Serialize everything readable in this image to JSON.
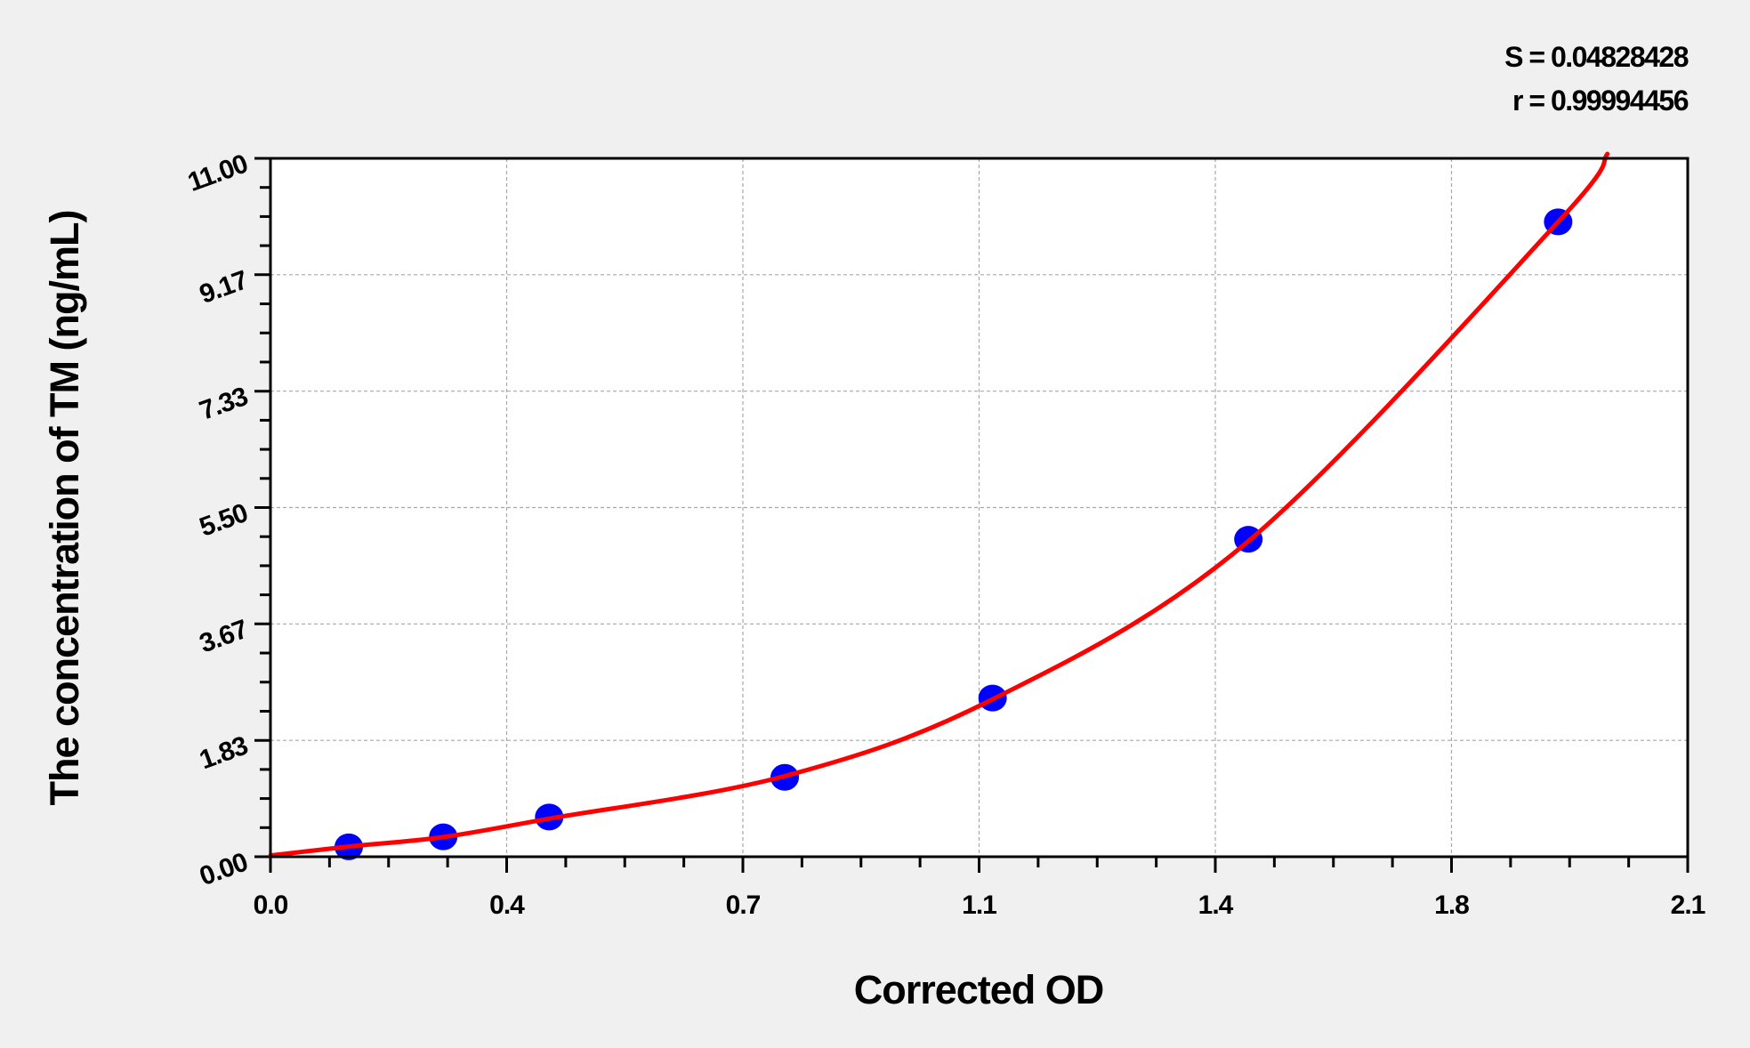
{
  "chart_data": {
    "type": "scatter",
    "title": "",
    "xlabel": "Corrected OD",
    "ylabel": "The concentration of TM (ng/mL)",
    "xlim": [
      0,
      2.1
    ],
    "ylim": [
      0,
      11
    ],
    "x_ticks": [
      0,
      0.35,
      0.7,
      1.05,
      1.4,
      1.75,
      2.1
    ],
    "x_tick_labels": [
      "0.0",
      "0.4",
      "0.7",
      "1.1",
      "1.4",
      "1.8",
      "2.1"
    ],
    "y_ticks": [
      0,
      1.833,
      3.667,
      5.5,
      7.333,
      9.167,
      11
    ],
    "y_tick_labels": [
      "0.00",
      "1.83",
      "3.67",
      "5.50",
      "7.33",
      "9.17",
      "11.00"
    ],
    "grid": true,
    "points": [
      {
        "x": 0.116,
        "y": 0.156
      },
      {
        "x": 0.256,
        "y": 0.313
      },
      {
        "x": 0.413,
        "y": 0.625
      },
      {
        "x": 0.762,
        "y": 1.25
      },
      {
        "x": 1.07,
        "y": 2.5
      },
      {
        "x": 1.449,
        "y": 5.0
      },
      {
        "x": 1.908,
        "y": 10.0
      }
    ],
    "fit_curve": [
      [
        0,
        0.02
      ],
      [
        0.116,
        0.16
      ],
      [
        0.256,
        0.31
      ],
      [
        0.413,
        0.6
      ],
      [
        0.762,
        1.27
      ],
      [
        1.07,
        2.48
      ],
      [
        1.449,
        4.97
      ],
      [
        1.908,
        10.0
      ],
      [
        1.981,
        11.07
      ]
    ],
    "annotations": [
      "S = 0.04828428",
      "r = 0.99994456"
    ],
    "colors": {
      "points": "#0000ff",
      "curve": "#ff0000",
      "background": "#f0f0f0",
      "plot_area": "#ffffff",
      "grid": "#a0a0a0"
    }
  }
}
